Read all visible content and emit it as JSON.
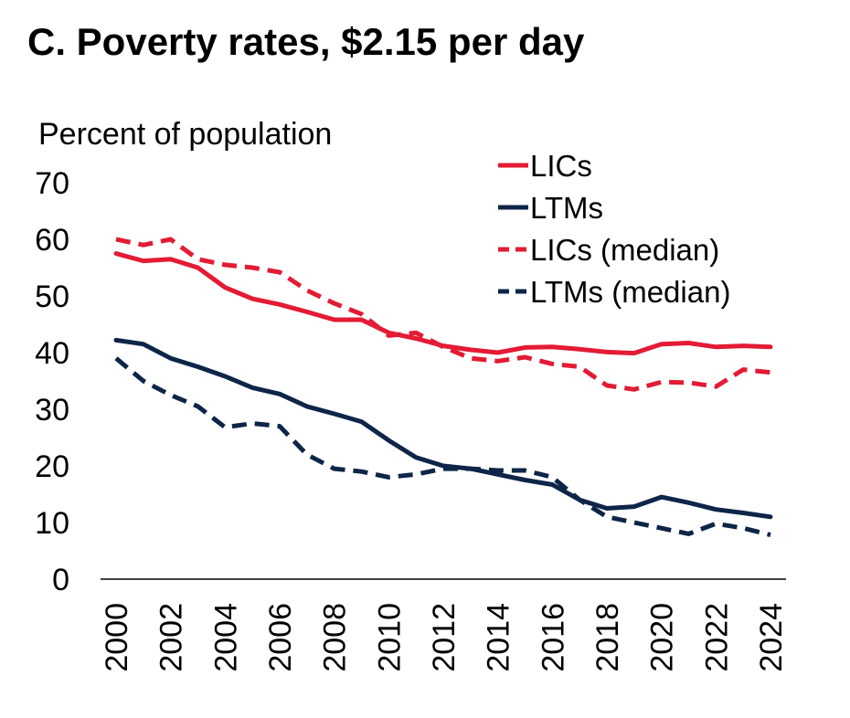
{
  "chart_data": {
    "type": "line",
    "title": "C. Poverty rates, $2.15 per day",
    "ylabel": "Percent of population",
    "xlabel": "",
    "x": [
      2000,
      2001,
      2002,
      2003,
      2004,
      2005,
      2006,
      2007,
      2008,
      2009,
      2010,
      2011,
      2012,
      2013,
      2014,
      2015,
      2016,
      2017,
      2018,
      2019,
      2020,
      2021,
      2022,
      2023,
      2024
    ],
    "x_tick_labels": [
      "2000",
      "2002",
      "2004",
      "2006",
      "2008",
      "2010",
      "2012",
      "2014",
      "2016",
      "2018",
      "2020",
      "2022",
      "2024"
    ],
    "y_ticks": [
      0,
      10,
      20,
      30,
      40,
      50,
      60,
      70
    ],
    "ylim": [
      0,
      70
    ],
    "grid": false,
    "legend_position": "top-right",
    "series": [
      {
        "name": "LICs",
        "color": "#e31b34",
        "style": "solid",
        "values": [
          57.5,
          56.2,
          56.5,
          55.0,
          51.5,
          49.5,
          48.5,
          47.2,
          45.8,
          45.8,
          43.5,
          42.5,
          41.2,
          40.5,
          40.0,
          40.9,
          41.0,
          40.6,
          40.1,
          39.9,
          41.5,
          41.7,
          41.0,
          41.2,
          41.0
        ]
      },
      {
        "name": "LTMs",
        "color": "#0d2548",
        "style": "solid",
        "values": [
          42.2,
          41.5,
          39.0,
          37.5,
          35.8,
          33.8,
          32.7,
          30.5,
          29.2,
          27.8,
          24.5,
          21.5,
          20.0,
          19.5,
          18.5,
          17.5,
          16.7,
          14.0,
          12.5,
          12.8,
          14.5,
          13.5,
          12.3,
          11.7,
          11.0
        ]
      },
      {
        "name": "LICs (median)",
        "color": "#e31b34",
        "style": "dashed",
        "values": [
          60.0,
          59.0,
          60.0,
          56.5,
          55.5,
          55.0,
          54.2,
          51.0,
          48.7,
          46.8,
          43.0,
          43.5,
          41.0,
          39.0,
          38.5,
          39.2,
          38.0,
          37.5,
          34.2,
          33.5,
          34.8,
          34.7,
          34.0,
          37.0,
          36.5
        ]
      },
      {
        "name": "LTMs (median)",
        "color": "#0d2548",
        "style": "dashed",
        "values": [
          39.0,
          35.0,
          32.5,
          30.5,
          26.8,
          27.5,
          27.0,
          22.0,
          19.5,
          19.0,
          18.0,
          18.5,
          19.5,
          19.5,
          19.2,
          19.2,
          18.0,
          14.0,
          11.0,
          10.0,
          9.0,
          8.0,
          9.8,
          9.0,
          7.8
        ]
      }
    ]
  }
}
